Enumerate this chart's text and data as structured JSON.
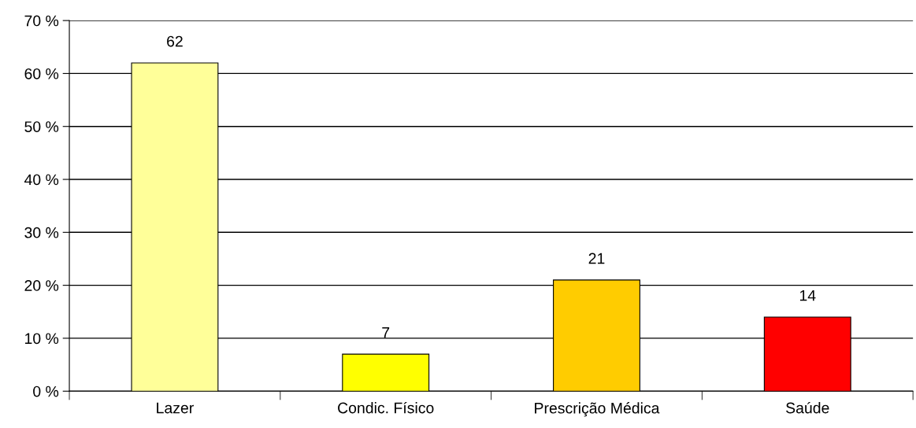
{
  "chart_data": {
    "type": "bar",
    "categories": [
      "Lazer",
      "Condic. Físico",
      "Prescrição Médica",
      "Saúde"
    ],
    "values": [
      62,
      7,
      21,
      14
    ],
    "colors": [
      "#ffff99",
      "#ffff00",
      "#ffcc00",
      "#ff0000"
    ],
    "ylim": [
      0,
      70
    ],
    "yticks": [
      {
        "value": 0,
        "label": "0 %"
      },
      {
        "value": 10,
        "label": "10 %"
      },
      {
        "value": 20,
        "label": "20 %"
      },
      {
        "value": 30,
        "label": "30 %"
      },
      {
        "value": 40,
        "label": "40 %"
      },
      {
        "value": 50,
        "label": "50 %"
      },
      {
        "value": 60,
        "label": "60 %"
      },
      {
        "value": 70,
        "label": "70 %"
      }
    ],
    "grid": "y",
    "legend": false,
    "data_labels": true
  }
}
